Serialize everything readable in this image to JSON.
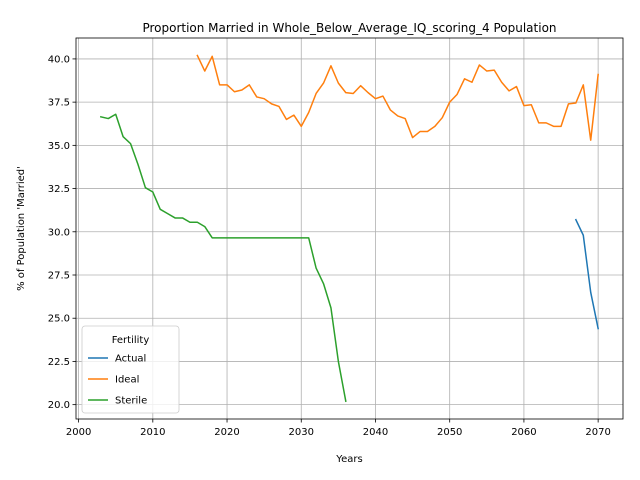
{
  "chart_data": {
    "type": "line",
    "title": "Proportion Married in Whole_Below_Average_IQ_scoring_4 Population",
    "xlabel": "Years",
    "ylabel": "% of Population 'Married'",
    "xlim": [
      1999.65,
      2073.35
    ],
    "ylim": [
      19.17,
      41.21
    ],
    "xticks": [
      2000,
      2010,
      2020,
      2030,
      2040,
      2050,
      2060,
      2070
    ],
    "yticks": [
      20.0,
      22.5,
      25.0,
      27.5,
      30.0,
      32.5,
      35.0,
      37.5,
      40.0
    ],
    "grid": true,
    "legend": {
      "title": "Fertility",
      "placement": "lower-left"
    },
    "series": [
      {
        "name": "Actual",
        "color": "#1f77b4",
        "x": [
          2067,
          2068,
          2069,
          2070
        ],
        "y": [
          30.7,
          29.8,
          26.5,
          24.4
        ]
      },
      {
        "name": "Ideal",
        "color": "#ff7f0e",
        "x": [
          2016,
          2017,
          2018,
          2019,
          2020,
          2021,
          2022,
          2023,
          2024,
          2025,
          2026,
          2027,
          2028,
          2029,
          2030,
          2031,
          2032,
          2033,
          2034,
          2035,
          2036,
          2037,
          2038,
          2039,
          2040,
          2041,
          2042,
          2043,
          2044,
          2045,
          2046,
          2047,
          2048,
          2049,
          2050,
          2051,
          2052,
          2053,
          2054,
          2055,
          2056,
          2057,
          2058,
          2059,
          2060,
          2061,
          2062,
          2063,
          2064,
          2065,
          2066,
          2067,
          2068,
          2069,
          2070
        ],
        "y": [
          40.2,
          39.3,
          40.15,
          38.5,
          38.5,
          38.1,
          38.2,
          38.5,
          37.8,
          37.7,
          37.4,
          37.25,
          36.5,
          36.75,
          36.1,
          36.9,
          38.0,
          38.6,
          39.6,
          38.6,
          38.05,
          38.0,
          38.45,
          38.05,
          37.7,
          37.85,
          37.05,
          36.7,
          36.55,
          35.45,
          35.8,
          35.8,
          36.1,
          36.6,
          37.5,
          37.95,
          38.85,
          38.65,
          39.65,
          39.3,
          39.35,
          38.65,
          38.15,
          38.4,
          37.3,
          37.35,
          36.3,
          36.3,
          36.1,
          36.1,
          37.4,
          37.45,
          38.5,
          35.3,
          39.1
        ]
      },
      {
        "name": "Sterile",
        "color": "#2ca02c",
        "x": [
          2003,
          2004,
          2005,
          2006,
          2007,
          2008,
          2009,
          2010,
          2011,
          2012,
          2013,
          2014,
          2015,
          2016,
          2017,
          2018,
          2019,
          2020,
          2021,
          2022,
          2023,
          2024,
          2025,
          2026,
          2027,
          2028,
          2029,
          2030,
          2031,
          2032,
          2033,
          2034,
          2035,
          2036
        ],
        "y": [
          36.65,
          36.55,
          36.8,
          35.5,
          35.1,
          33.9,
          32.55,
          32.3,
          31.3,
          31.05,
          30.8,
          30.8,
          30.55,
          30.55,
          30.3,
          29.65,
          29.65,
          29.65,
          29.65,
          29.65,
          29.65,
          29.65,
          29.65,
          29.65,
          29.65,
          29.65,
          29.65,
          29.65,
          29.65,
          27.9,
          27.0,
          25.6,
          22.5,
          20.2
        ]
      }
    ]
  }
}
